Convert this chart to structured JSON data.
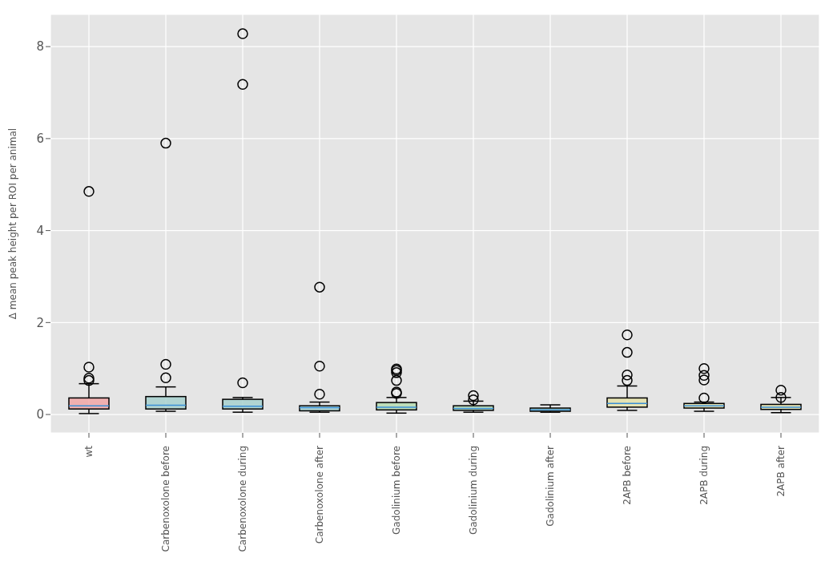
{
  "chart_data": {
    "type": "box",
    "ylabel": "Δ mean peak height per ROI per animal",
    "categories": [
      "wt",
      "Carbenoxolone before",
      "Carbenoxolone during",
      "Carbenoxolone after",
      "Gadolinium before",
      "Gadolinium during",
      "Gadolinium after",
      "2APB before",
      "2APB during",
      "2APB after"
    ],
    "colors": [
      "#f2a3a3",
      "#a3d0cd",
      "#a3d0cd",
      "#a3d0cd",
      "#b3dbae",
      "#b3dbae",
      "#b3dbae",
      "#e3e1a6",
      "#e3e1a6",
      "#e3e1a6"
    ],
    "boxes": [
      {
        "low": 0.02,
        "q1": 0.12,
        "median": 0.19,
        "q3": 0.36,
        "high": 0.67,
        "outliers": [
          0.74,
          0.79,
          1.03,
          4.85
        ]
      },
      {
        "low": 0.07,
        "q1": 0.12,
        "median": 0.2,
        "q3": 0.39,
        "high": 0.6,
        "outliers": [
          0.8,
          1.09,
          5.9
        ]
      },
      {
        "low": 0.05,
        "q1": 0.12,
        "median": 0.18,
        "q3": 0.33,
        "high": 0.37,
        "outliers": [
          0.69,
          7.18,
          8.28
        ]
      },
      {
        "low": 0.05,
        "q1": 0.08,
        "median": 0.15,
        "q3": 0.19,
        "high": 0.27,
        "outliers": [
          0.44,
          1.05,
          2.77
        ]
      },
      {
        "low": 0.03,
        "q1": 0.1,
        "median": 0.16,
        "q3": 0.26,
        "high": 0.37,
        "outliers": [
          0.46,
          0.49,
          0.74,
          0.91,
          0.96,
          0.99
        ]
      },
      {
        "low": 0.05,
        "q1": 0.09,
        "median": 0.13,
        "q3": 0.19,
        "high": 0.29,
        "outliers": [
          0.32,
          0.41
        ]
      },
      {
        "low": 0.05,
        "q1": 0.07,
        "median": 0.1,
        "q3": 0.14,
        "high": 0.21
      },
      {
        "low": 0.09,
        "q1": 0.16,
        "median": 0.24,
        "q3": 0.36,
        "high": 0.62,
        "outliers": [
          0.74,
          0.86,
          1.35,
          1.73
        ]
      },
      {
        "low": 0.07,
        "q1": 0.14,
        "median": 0.19,
        "q3": 0.24,
        "high": 0.27,
        "outliers": [
          0.36,
          0.75,
          0.85,
          1.0
        ]
      },
      {
        "low": 0.04,
        "q1": 0.11,
        "median": 0.16,
        "q3": 0.22,
        "high": 0.37,
        "outliers": [
          0.37,
          0.53
        ]
      }
    ],
    "ylim": [
      -0.4,
      8.7
    ],
    "yticks": [
      0,
      2,
      4,
      6,
      8
    ],
    "grid": true
  }
}
